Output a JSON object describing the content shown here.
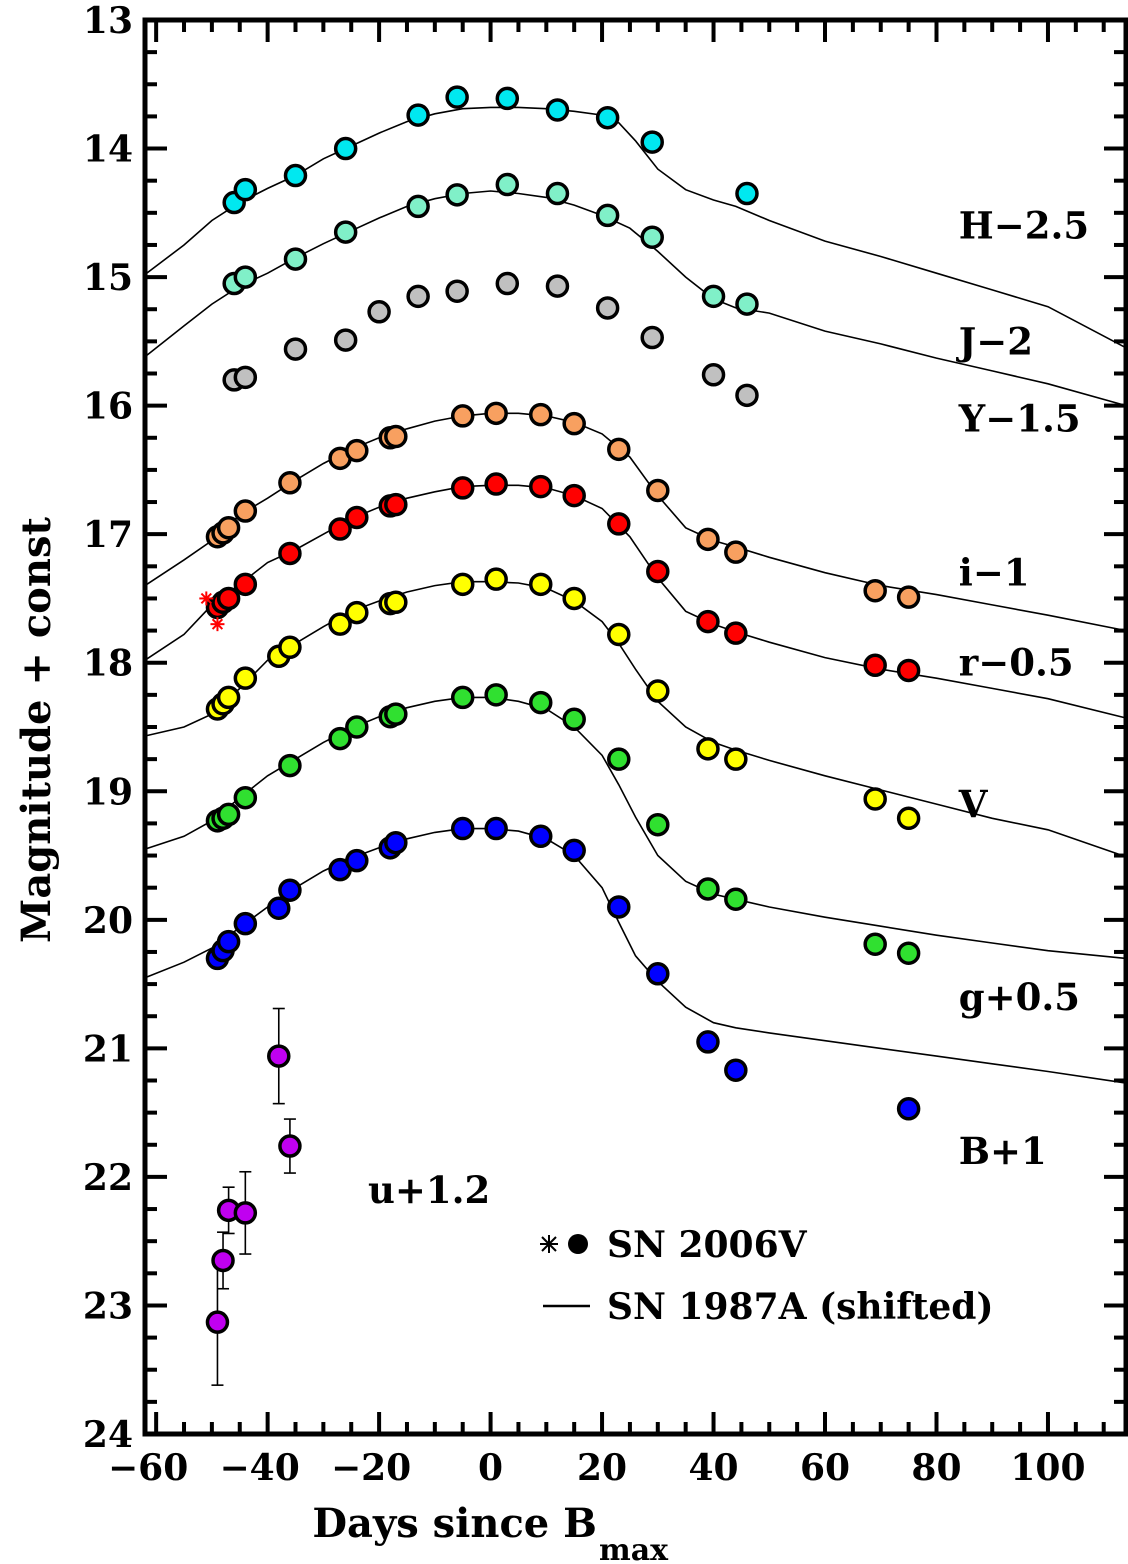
{
  "chart_data": {
    "type": "scatter",
    "xlabel": "Days since B",
    "xlabel_sub": "max",
    "ylabel": "Magnitude + const",
    "xlim": [
      -62,
      114
    ],
    "ylim": [
      24,
      13
    ],
    "y_inverted": true,
    "xticks": [
      -60,
      -40,
      -20,
      0,
      20,
      40,
      60,
      80,
      100
    ],
    "xtick_labels": [
      "−60",
      "−40",
      "−20",
      "0",
      "20",
      "40",
      "60",
      "80",
      "100"
    ],
    "yticks": [
      13,
      14,
      15,
      16,
      17,
      18,
      19,
      20,
      21,
      22,
      23,
      24
    ],
    "ytick_labels": [
      "13",
      "14",
      "15",
      "16",
      "17",
      "18",
      "19",
      "20",
      "21",
      "22",
      "23",
      "24"
    ],
    "band_labels": [
      {
        "text": "H−2.5",
        "x": 84,
        "y": 14.6
      },
      {
        "text": "J−2",
        "x": 84,
        "y": 15.5
      },
      {
        "text": "Y−1.5",
        "x": 84,
        "y": 16.1
      },
      {
        "text": "i−1",
        "x": 84,
        "y": 17.3
      },
      {
        "text": "r−0.5",
        "x": 84,
        "y": 18.0
      },
      {
        "text": "V",
        "x": 84,
        "y": 19.1
      },
      {
        "text": "g+0.5",
        "x": 84,
        "y": 20.6
      },
      {
        "text": "B+1",
        "x": 84,
        "y": 21.8
      },
      {
        "text": "u+1.2",
        "x": -22,
        "y": 22.1
      }
    ],
    "legend": {
      "position": "bottom-right",
      "entries": [
        {
          "symbol": "star-dot",
          "label": "SN 2006V"
        },
        {
          "symbol": "line",
          "label": "SN 1987A (shifted)"
        }
      ]
    },
    "series": [
      {
        "name": "H−2.5",
        "color": "#00e8f0",
        "x": [
          -46,
          -44,
          -35,
          -26,
          -13,
          -6,
          3,
          12,
          21,
          29,
          46
        ],
        "y": [
          14.42,
          14.32,
          14.21,
          14.0,
          13.74,
          13.6,
          13.61,
          13.7,
          13.76,
          13.95,
          14.35
        ]
      },
      {
        "name": "J−2",
        "color": "#80f0c8",
        "x": [
          -46,
          -44,
          -35,
          -26,
          -13,
          -6,
          3,
          12,
          21,
          29,
          40,
          46
        ],
        "y": [
          15.05,
          15.0,
          14.86,
          14.65,
          14.45,
          14.36,
          14.28,
          14.35,
          14.52,
          14.69,
          15.15,
          15.21
        ]
      },
      {
        "name": "Y−1.5",
        "color": "#c0c0c0",
        "x": [
          -46,
          -44,
          -35,
          -26,
          -20,
          -13,
          -6,
          3,
          12,
          21,
          29,
          40,
          46
        ],
        "y": [
          15.8,
          15.78,
          15.56,
          15.49,
          15.27,
          15.15,
          15.11,
          15.05,
          15.07,
          15.24,
          15.47,
          15.76,
          15.92
        ]
      },
      {
        "name": "i−1",
        "color": "#f8a060",
        "x": [
          -49,
          -48,
          -47,
          -44,
          -36,
          -27,
          -24,
          -18,
          -17,
          -5,
          1,
          9,
          15,
          23,
          30,
          39,
          44,
          69,
          75
        ],
        "y": [
          17.02,
          16.99,
          16.95,
          16.82,
          16.6,
          16.41,
          16.35,
          16.25,
          16.24,
          16.08,
          16.06,
          16.07,
          16.14,
          16.34,
          16.66,
          17.04,
          17.14,
          17.44,
          17.49
        ]
      },
      {
        "name": "r−0.5",
        "color": "#ff0000",
        "x": [
          -49,
          -48,
          -47,
          -44,
          -36,
          -27,
          -24,
          -18,
          -17,
          -5,
          1,
          9,
          15,
          23,
          30,
          39,
          44,
          69,
          75
        ],
        "y": [
          17.57,
          17.53,
          17.5,
          17.39,
          17.15,
          16.96,
          16.87,
          16.78,
          16.77,
          16.64,
          16.61,
          16.63,
          16.7,
          16.92,
          17.29,
          17.68,
          17.77,
          18.02,
          18.06
        ]
      },
      {
        "name": "V",
        "color": "#ffff00",
        "x": [
          -49,
          -48,
          -47,
          -44,
          -38,
          -36,
          -27,
          -24,
          -18,
          -17,
          -5,
          1,
          9,
          15,
          23,
          30,
          39,
          44,
          69,
          75
        ],
        "y": [
          18.36,
          18.32,
          18.27,
          18.12,
          17.95,
          17.88,
          17.7,
          17.61,
          17.54,
          17.53,
          17.39,
          17.35,
          17.39,
          17.5,
          17.78,
          18.22,
          18.67,
          18.75,
          19.06,
          19.21
        ]
      },
      {
        "name": "g+0.5",
        "color": "#30e030",
        "x": [
          -49,
          -48,
          -47,
          -44,
          -36,
          -27,
          -24,
          -18,
          -17,
          -5,
          1,
          9,
          15,
          23,
          30,
          39,
          44,
          69,
          75
        ],
        "y": [
          19.23,
          19.21,
          19.18,
          19.05,
          18.8,
          18.59,
          18.5,
          18.42,
          18.4,
          18.27,
          18.25,
          18.31,
          18.44,
          18.75,
          19.26,
          19.76,
          19.84,
          20.19,
          20.26
        ]
      },
      {
        "name": "B+1",
        "color": "#0000ff",
        "x": [
          -49,
          -48,
          -47,
          -44,
          -38,
          -36,
          -27,
          -24,
          -18,
          -17,
          -5,
          1,
          9,
          15,
          23,
          30,
          39,
          44,
          75
        ],
        "y": [
          20.3,
          20.24,
          20.17,
          20.03,
          19.91,
          19.77,
          19.61,
          19.54,
          19.44,
          19.4,
          19.29,
          19.29,
          19.35,
          19.46,
          19.9,
          20.42,
          20.95,
          21.17,
          21.47
        ]
      },
      {
        "name": "u+1.2",
        "color": "#c000f0",
        "x": [
          -49,
          -48,
          -47,
          -44,
          -38,
          -36
        ],
        "y": [
          23.13,
          22.65,
          22.26,
          22.28,
          21.06,
          21.76
        ],
        "yerr": [
          0.49,
          0.22,
          0.18,
          0.32,
          0.37,
          0.21
        ]
      },
      {
        "name": "r−0.5 (star)",
        "marker": "star",
        "color": "#ff0000",
        "x": [
          -51,
          -49
        ],
        "y": [
          17.5,
          17.7
        ]
      }
    ],
    "models": [
      {
        "band": "H−2.5",
        "x": [
          -62,
          -55,
          -50,
          -45,
          -40,
          -35,
          -30,
          -25,
          -20,
          -15,
          -10,
          -5,
          0,
          5,
          10,
          15,
          20,
          23,
          26,
          30,
          35,
          40,
          44,
          50,
          60,
          70,
          80,
          90,
          100,
          114
        ],
        "y": [
          14.98,
          14.75,
          14.56,
          14.42,
          14.31,
          14.21,
          14.08,
          13.98,
          13.88,
          13.79,
          13.73,
          13.69,
          13.68,
          13.68,
          13.69,
          13.71,
          13.74,
          13.8,
          13.94,
          14.16,
          14.32,
          14.4,
          14.45,
          14.56,
          14.72,
          14.84,
          14.97,
          15.1,
          15.23,
          15.55
        ]
      },
      {
        "band": "J−2",
        "x": [
          -62,
          -55,
          -50,
          -45,
          -40,
          -35,
          -30,
          -25,
          -20,
          -15,
          -10,
          -5,
          0,
          5,
          10,
          15,
          20,
          25,
          30,
          35,
          40,
          44,
          50,
          60,
          70,
          80,
          90,
          100,
          114
        ],
        "y": [
          15.62,
          15.38,
          15.21,
          15.07,
          14.97,
          14.85,
          14.74,
          14.64,
          14.54,
          14.45,
          14.39,
          14.35,
          14.33,
          14.35,
          14.38,
          14.44,
          14.52,
          14.62,
          14.8,
          15.0,
          15.17,
          15.24,
          15.28,
          15.42,
          15.52,
          15.63,
          15.73,
          15.83,
          16.0
        ]
      },
      {
        "band": "i−1",
        "x": [
          -62,
          -55,
          -50,
          -45,
          -40,
          -35,
          -30,
          -25,
          -20,
          -15,
          -10,
          -5,
          0,
          5,
          10,
          15,
          20,
          25,
          30,
          35,
          40,
          44,
          50,
          60,
          70,
          80,
          90,
          100,
          114
        ],
        "y": [
          17.4,
          17.2,
          17.05,
          16.85,
          16.72,
          16.58,
          16.45,
          16.34,
          16.25,
          16.18,
          16.12,
          16.08,
          16.06,
          16.06,
          16.08,
          16.13,
          16.22,
          16.4,
          16.7,
          16.95,
          17.05,
          17.1,
          17.18,
          17.3,
          17.4,
          17.47,
          17.55,
          17.63,
          17.75
        ]
      },
      {
        "band": "r−0.5",
        "x": [
          -62,
          -55,
          -50,
          -45,
          -40,
          -35,
          -30,
          -25,
          -20,
          -15,
          -10,
          -5,
          0,
          5,
          10,
          15,
          20,
          25,
          30,
          35,
          40,
          44,
          50,
          60,
          70,
          80,
          90,
          100,
          114
        ],
        "y": [
          17.98,
          17.78,
          17.55,
          17.39,
          17.22,
          17.12,
          17.0,
          16.88,
          16.79,
          16.72,
          16.67,
          16.63,
          16.62,
          16.62,
          16.64,
          16.7,
          16.8,
          17.02,
          17.34,
          17.6,
          17.7,
          17.76,
          17.84,
          17.96,
          18.05,
          18.12,
          18.2,
          18.28,
          18.43
        ]
      },
      {
        "band": "V",
        "x": [
          -62,
          -55,
          -50,
          -45,
          -40,
          -35,
          -30,
          -25,
          -20,
          -15,
          -10,
          -5,
          0,
          5,
          10,
          15,
          20,
          23,
          26,
          30,
          35,
          40,
          44,
          50,
          60,
          70,
          80,
          90,
          100,
          114
        ],
        "y": [
          18.57,
          18.5,
          18.4,
          18.2,
          17.98,
          17.85,
          17.72,
          17.6,
          17.52,
          17.45,
          17.4,
          17.37,
          17.37,
          17.38,
          17.42,
          17.52,
          17.68,
          17.85,
          18.05,
          18.3,
          18.5,
          18.62,
          18.68,
          18.76,
          18.88,
          18.99,
          19.1,
          19.21,
          19.3,
          19.51
        ]
      },
      {
        "band": "g+0.5",
        "x": [
          -62,
          -55,
          -50,
          -45,
          -40,
          -35,
          -30,
          -25,
          -20,
          -15,
          -10,
          -5,
          0,
          5,
          10,
          15,
          20,
          23,
          26,
          30,
          35,
          40,
          44,
          50,
          60,
          70,
          80,
          90,
          100,
          114
        ],
        "y": [
          19.45,
          19.35,
          19.23,
          19.05,
          18.88,
          18.75,
          18.62,
          18.51,
          18.42,
          18.35,
          18.3,
          18.27,
          18.27,
          18.3,
          18.36,
          18.5,
          18.72,
          18.95,
          19.2,
          19.5,
          19.7,
          19.8,
          19.84,
          19.9,
          19.98,
          20.05,
          20.12,
          20.18,
          20.24,
          20.3
        ]
      },
      {
        "band": "B+1",
        "x": [
          -62,
          -55,
          -50,
          -45,
          -40,
          -35,
          -30,
          -25,
          -20,
          -15,
          -10,
          -5,
          0,
          5,
          10,
          15,
          20,
          23,
          26,
          30,
          35,
          40,
          44,
          50,
          60,
          70,
          80,
          90,
          100,
          114
        ],
        "y": [
          20.45,
          20.33,
          20.22,
          20.06,
          19.9,
          19.75,
          19.62,
          19.52,
          19.44,
          19.37,
          19.32,
          19.29,
          19.29,
          19.31,
          19.37,
          19.5,
          19.75,
          20.02,
          20.28,
          20.48,
          20.68,
          20.8,
          20.84,
          20.88,
          20.94,
          21.0,
          21.06,
          21.12,
          21.18,
          21.27
        ]
      }
    ]
  }
}
